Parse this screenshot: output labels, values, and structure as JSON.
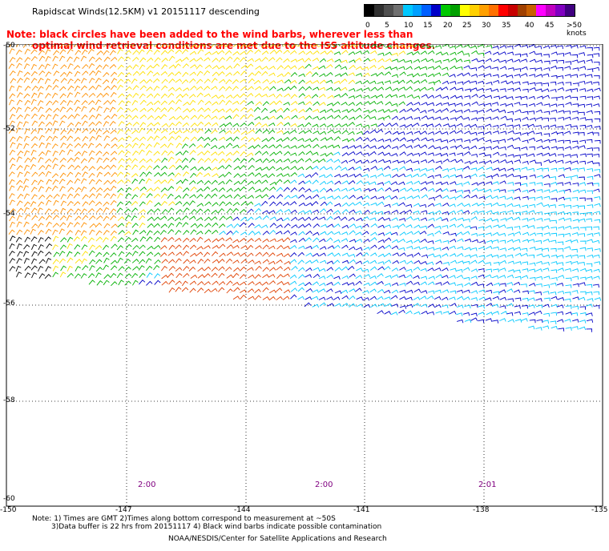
{
  "title": "Rapidscat Winds(12.5KM)  v1  20151117  descending",
  "note_line1": "Note: black circles have been added to the wind barbs, wherever less than",
  "note_line2": "optimal wind retrieval conditions are met due to the ISS altitude changes.",
  "legend": {
    "labels": [
      "0",
      "5",
      "10",
      "15",
      "20",
      "25",
      "30",
      "35",
      "40",
      "45",
      ">50 knots"
    ],
    "colors": [
      "#000000",
      "#303030",
      "#505050",
      "#707070",
      "#00c8ff",
      "#00a0ff",
      "#0060ff",
      "#0000c8",
      "#00c800",
      "#00a000",
      "#ffff00",
      "#ffd000",
      "#ffa000",
      "#ff7000",
      "#ff0000",
      "#c80000",
      "#a04000",
      "#c86000",
      "#ff00ff",
      "#c000c0",
      "#8000c0",
      "#400080"
    ]
  },
  "axes": {
    "lat_labels": [
      "-50",
      "-52",
      "-54",
      "-56",
      "-58",
      "-60"
    ],
    "lon_labels": [
      "-150",
      "-147",
      "-144",
      "-141",
      "-138",
      "-135"
    ]
  },
  "times": [
    "2:00",
    "2:00",
    "2:01"
  ],
  "footer": {
    "line1": "Note: 1) Times are GMT 2)Times along bottom correspond to measurement at ~50S",
    "line2": "3)Data buffer is 22 hrs from 20151117 4) Black wind barbs indicate possible contamination",
    "line3": "NOAA/NESDIS/Center for Satellite Applications and Research"
  },
  "colors": {
    "wind_black": "#000000",
    "wind_cyan": "#00c8ff",
    "wind_blue": "#0000c8",
    "wind_green": "#00b000",
    "wind_yellow": "#ffe000",
    "wind_orange": "#ff9000",
    "wind_red": "#e04000",
    "note_red": "#ff0000",
    "time_purple": "#800080"
  }
}
